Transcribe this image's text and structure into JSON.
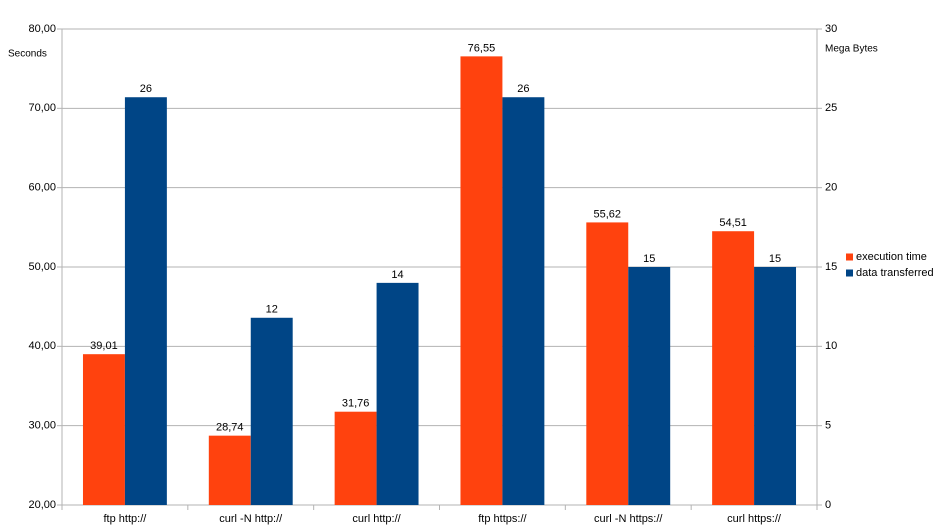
{
  "chart_data": {
    "type": "bar",
    "y_label": "Seconds",
    "y2_label": "Mega Bytes",
    "categories": [
      "ftp http://",
      "curl -N http://",
      "curl http://",
      "ftp https://",
      "curl -N https://",
      "curl https://"
    ],
    "series": [
      {
        "name": "execution time",
        "color": "#ff420e",
        "values": [
          39.01,
          28.74,
          31.76,
          76.55,
          55.62,
          54.51
        ],
        "value_labels": [
          "39,01",
          "28,74",
          "31,76",
          "76,55",
          "55,62",
          "54,51"
        ]
      },
      {
        "name": "data transferred",
        "color": "#004586",
        "axis": "y2",
        "values": [
          25.7,
          11.8,
          14,
          25.7,
          15,
          15
        ],
        "value_labels": [
          "26",
          "12",
          "14",
          "26",
          "15",
          "15"
        ]
      }
    ],
    "ylim": [
      20,
      80
    ],
    "yticks": [
      {
        "value": 20,
        "label": "20,00"
      },
      {
        "value": 30,
        "label": "30,00"
      },
      {
        "value": 40,
        "label": "40,00"
      },
      {
        "value": 50,
        "label": "50,00"
      },
      {
        "value": 60,
        "label": "60,00"
      },
      {
        "value": 70,
        "label": "70,00"
      },
      {
        "value": 80,
        "label": "80,00"
      }
    ],
    "y2lim": [
      0,
      30
    ],
    "y2ticks": [
      0,
      5,
      10,
      15,
      20,
      25,
      30
    ],
    "grid": true,
    "legend": "right"
  }
}
